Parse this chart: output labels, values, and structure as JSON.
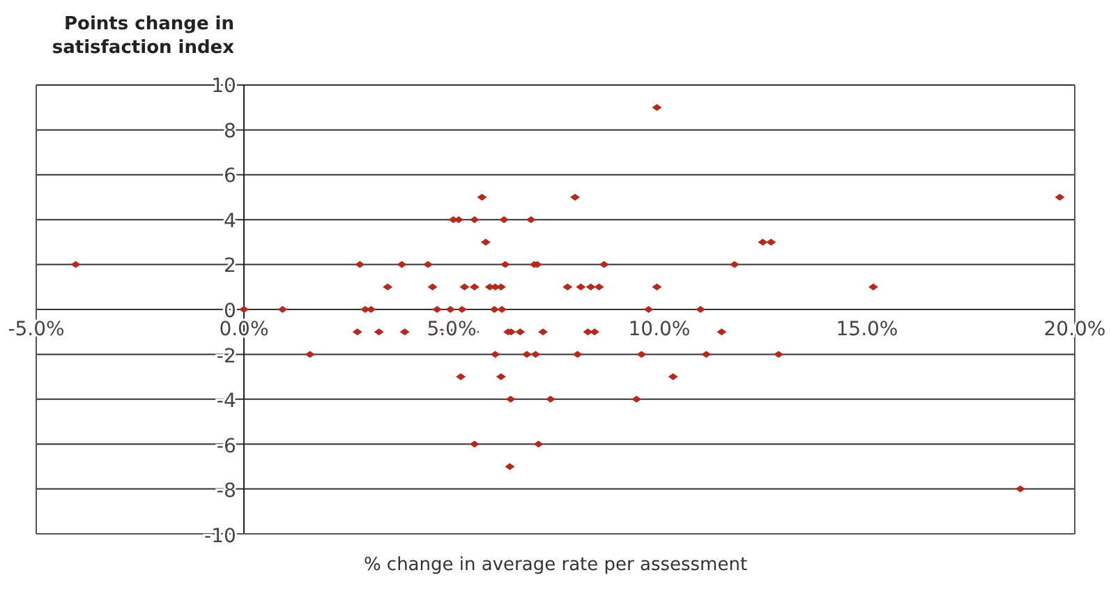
{
  "chart_data": {
    "type": "scatter",
    "xlabel": "% change in average rate per assessment",
    "ylabel": "Points change in satisfaction index",
    "xlim": [
      -5,
      20
    ],
    "xticks": [
      {
        "value": -5,
        "label": "-5.0%"
      },
      {
        "value": 0,
        "label": "0.0%"
      },
      {
        "value": 5,
        "label": "5.0%"
      },
      {
        "value": 10,
        "label": "10.0%"
      },
      {
        "value": 15,
        "label": "15.0%"
      },
      {
        "value": 20,
        "label": "20.0%"
      }
    ],
    "ylim": [
      -10,
      10
    ],
    "yticks": [
      -10,
      -8,
      -6,
      -4,
      -2,
      0,
      2,
      4,
      6,
      8,
      10
    ],
    "grid": "y",
    "legend": false,
    "marker": "diamond",
    "series": [
      {
        "color": "#b52a1c",
        "x": [
          -4.05,
          0.0,
          0.93,
          1.59,
          2.79,
          2.73,
          2.92,
          3.06,
          3.25,
          3.46,
          3.8,
          3.87,
          9.94,
          5.73,
          7.97,
          5.04,
          5.17,
          5.55,
          6.26,
          6.91,
          5.82,
          4.43,
          6.29,
          6.99,
          7.06,
          8.67,
          11.81,
          4.54,
          5.31,
          5.55,
          5.92,
          6.05,
          6.19,
          7.79,
          8.11,
          8.35,
          8.55,
          9.94,
          4.65,
          4.97,
          5.25,
          6.03,
          6.21,
          9.74,
          10.99,
          4.76,
          5.01,
          5.55,
          6.36,
          6.43,
          6.65,
          7.2,
          8.28,
          8.44,
          11.5,
          6.05,
          6.81,
          7.02,
          8.03,
          9.57,
          11.13,
          5.22,
          6.19,
          10.33,
          6.42,
          7.38,
          9.45,
          5.55,
          7.09,
          6.4,
          19.64,
          12.49,
          12.69,
          15.15,
          12.87,
          18.69
        ],
        "values": [
          2,
          0,
          0,
          -2,
          2,
          -1,
          0,
          0,
          -1,
          1,
          2,
          -1,
          9,
          5,
          5,
          4,
          4,
          4,
          4,
          4,
          3,
          2,
          2,
          2,
          2,
          2,
          2,
          1,
          1,
          1,
          1,
          1,
          1,
          1,
          1,
          1,
          1,
          1,
          0,
          0,
          0,
          0,
          0,
          0,
          0,
          -1,
          -1,
          -1,
          -1,
          -1,
          -1,
          -1,
          -1,
          -1,
          -1,
          -2,
          -2,
          -2,
          -2,
          -2,
          -2,
          -3,
          -3,
          -3,
          -4,
          -4,
          -4,
          -6,
          -6,
          -7,
          5,
          3,
          3,
          1,
          -2,
          -8
        ]
      }
    ]
  }
}
